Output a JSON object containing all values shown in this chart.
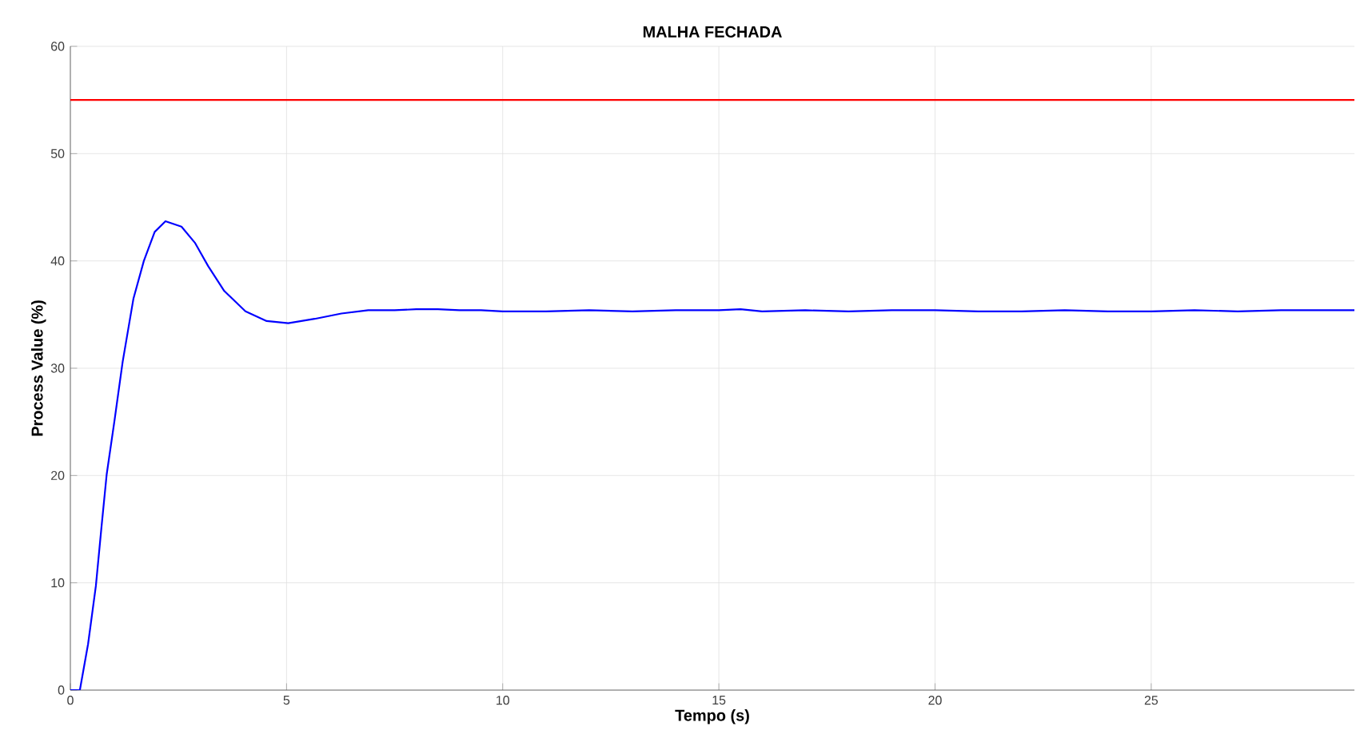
{
  "chart_data": {
    "type": "line",
    "title": "MALHA FECHADA",
    "xlabel": "Tempo (s)",
    "ylabel": "Process Value (%)",
    "xlim": [
      0,
      29.7
    ],
    "ylim": [
      0,
      60
    ],
    "xticks": [
      0,
      5,
      10,
      15,
      20,
      25
    ],
    "yticks": [
      0,
      10,
      20,
      30,
      40,
      50,
      60
    ],
    "grid": true,
    "series": [
      {
        "color": "#0000ff",
        "x": [
          0,
          0.22,
          0.41,
          0.59,
          0.72,
          0.84,
          1.02,
          1.21,
          1.46,
          1.7,
          1.95,
          2.2,
          2.57,
          2.88,
          3.19,
          3.56,
          4.05,
          4.54,
          5.04,
          5.65,
          6.27,
          6.89,
          7.5,
          8.0,
          8.5,
          9.0,
          9.5,
          10.0,
          11.0,
          12.0,
          13.0,
          14.0,
          15.0,
          15.5,
          16.0,
          17.0,
          18.0,
          19.0,
          20.0,
          21.0,
          22.0,
          23.0,
          24.0,
          25.0,
          26.0,
          27.0,
          28.0,
          29.0,
          29.7
        ],
        "values": [
          0,
          0,
          4.3,
          9.7,
          15.2,
          20.1,
          25.1,
          30.6,
          36.5,
          40.0,
          42.7,
          43.7,
          43.2,
          41.7,
          39.5,
          37.2,
          35.3,
          34.4,
          34.2,
          34.6,
          35.1,
          35.4,
          35.4,
          35.5,
          35.5,
          35.4,
          35.4,
          35.3,
          35.3,
          35.4,
          35.3,
          35.4,
          35.4,
          35.5,
          35.3,
          35.4,
          35.3,
          35.4,
          35.4,
          35.3,
          35.3,
          35.4,
          35.3,
          35.3,
          35.4,
          35.3,
          35.4,
          35.4,
          35.4
        ]
      }
    ],
    "ref_lines": [
      {
        "axis": "y",
        "value": 55,
        "color": "#ff0000"
      }
    ]
  }
}
